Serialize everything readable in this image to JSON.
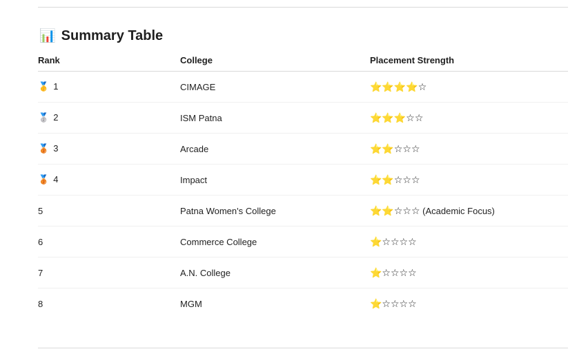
{
  "heading": {
    "icon": "📊",
    "icon_name": "bar-chart-icon",
    "text": "Summary Table"
  },
  "columns": [
    "Rank",
    "College",
    "Placement Strength"
  ],
  "rows": [
    {
      "medal": "🥇",
      "rank": "1",
      "college": "CIMAGE",
      "stars": "⭐⭐⭐⭐☆",
      "rating": 4,
      "note": ""
    },
    {
      "medal": "🥈",
      "rank": "2",
      "college": "ISM Patna",
      "stars": "⭐⭐⭐☆☆",
      "rating": 3,
      "note": ""
    },
    {
      "medal": "🥉",
      "rank": "3",
      "college": "Arcade",
      "stars": "⭐⭐☆☆☆",
      "rating": 2,
      "note": ""
    },
    {
      "medal": "🥉",
      "rank": "4",
      "college": "Impact",
      "stars": "⭐⭐☆☆☆",
      "rating": 2,
      "note": ""
    },
    {
      "medal": "",
      "rank": "5",
      "college": "Patna Women's College",
      "stars": "⭐⭐☆☆☆",
      "rating": 2,
      "note": "(Academic Focus)"
    },
    {
      "medal": "",
      "rank": "6",
      "college": "Commerce College",
      "stars": "⭐☆☆☆☆",
      "rating": 1,
      "note": ""
    },
    {
      "medal": "",
      "rank": "7",
      "college": "A.N. College",
      "stars": "⭐☆☆☆☆",
      "rating": 1,
      "note": ""
    },
    {
      "medal": "",
      "rank": "8",
      "college": "MGM",
      "stars": "⭐☆☆☆☆",
      "rating": 1,
      "note": ""
    }
  ]
}
